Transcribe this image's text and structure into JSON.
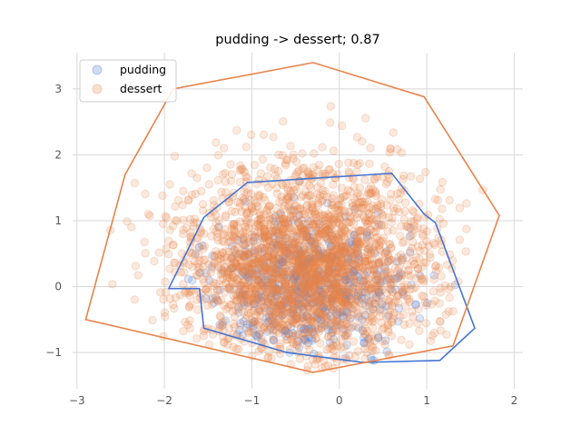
{
  "chart_data": {
    "type": "scatter",
    "title": "pudding -> dessert; 0.87",
    "xlabel": "",
    "ylabel": "",
    "xlim": [
      -3.05,
      2.1
    ],
    "ylim": [
      -1.55,
      3.55
    ],
    "xticks": [
      -3,
      -2,
      -1,
      0,
      1,
      2
    ],
    "yticks": [
      -1,
      0,
      1,
      2,
      3
    ],
    "grid": true,
    "legend_position": "upper-left",
    "series": [
      {
        "name": "pudding",
        "color": "#4575d1",
        "point_count": 600,
        "center": [
          -0.35,
          0.0
        ],
        "spread": [
          0.55,
          0.55
        ],
        "hull": [
          [
            -1.95,
            -0.03
          ],
          [
            -1.55,
            1.05
          ],
          [
            -1.05,
            1.58
          ],
          [
            0.6,
            1.72
          ],
          [
            0.97,
            1.1
          ],
          [
            1.1,
            0.97
          ],
          [
            1.55,
            -0.63
          ],
          [
            1.15,
            -1.12
          ],
          [
            0.27,
            -1.15
          ],
          [
            -0.6,
            -1.0
          ],
          [
            -1.55,
            -0.63
          ],
          [
            -1.6,
            -0.03
          ]
        ]
      },
      {
        "name": "dessert",
        "color": "#e8834a",
        "point_count": 2500,
        "center": [
          -0.4,
          0.3
        ],
        "spread": [
          0.7,
          0.75
        ],
        "hull": [
          [
            -2.9,
            -0.5
          ],
          [
            -2.45,
            1.7
          ],
          [
            -1.9,
            3.0
          ],
          [
            -0.3,
            3.4
          ],
          [
            0.97,
            2.88
          ],
          [
            1.83,
            1.08
          ],
          [
            1.3,
            -0.9
          ],
          [
            -0.3,
            -1.3
          ],
          [
            -2.9,
            -0.5
          ]
        ]
      }
    ]
  }
}
